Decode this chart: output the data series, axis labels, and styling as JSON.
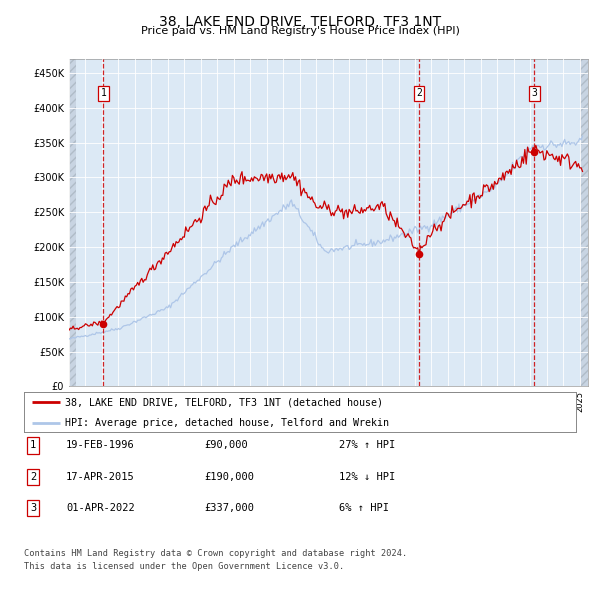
{
  "title": "38, LAKE END DRIVE, TELFORD, TF3 1NT",
  "subtitle": "Price paid vs. HM Land Registry's House Price Index (HPI)",
  "sale_dates": [
    "1996-02-19",
    "2015-04-17",
    "2022-04-01"
  ],
  "sale_prices": [
    90000,
    190000,
    337000
  ],
  "sale_labels": [
    "1",
    "2",
    "3"
  ],
  "legend_line1": "38, LAKE END DRIVE, TELFORD, TF3 1NT (detached house)",
  "legend_line2": "HPI: Average price, detached house, Telford and Wrekin",
  "table_rows": [
    [
      "1",
      "19-FEB-1996",
      "£90,000",
      "27% ↑ HPI"
    ],
    [
      "2",
      "17-APR-2015",
      "£190,000",
      "12% ↓ HPI"
    ],
    [
      "3",
      "01-APR-2022",
      "£337,000",
      "6% ↑ HPI"
    ]
  ],
  "footnote1": "Contains HM Land Registry data © Crown copyright and database right 2024.",
  "footnote2": "This data is licensed under the Open Government Licence v3.0.",
  "hpi_color": "#aec6e8",
  "price_color": "#cc0000",
  "marker_color": "#cc0000",
  "dashed_line_color": "#cc0000",
  "plot_bg_color": "#dce9f5",
  "ylim": [
    0,
    470000
  ],
  "yticks": [
    0,
    50000,
    100000,
    150000,
    200000,
    250000,
    300000,
    350000,
    400000,
    450000
  ],
  "ytick_labels": [
    "£0",
    "£50K",
    "£100K",
    "£150K",
    "£200K",
    "£250K",
    "£300K",
    "£350K",
    "£400K",
    "£450K"
  ],
  "xlim_start": 1994.0,
  "xlim_end": 2025.5
}
